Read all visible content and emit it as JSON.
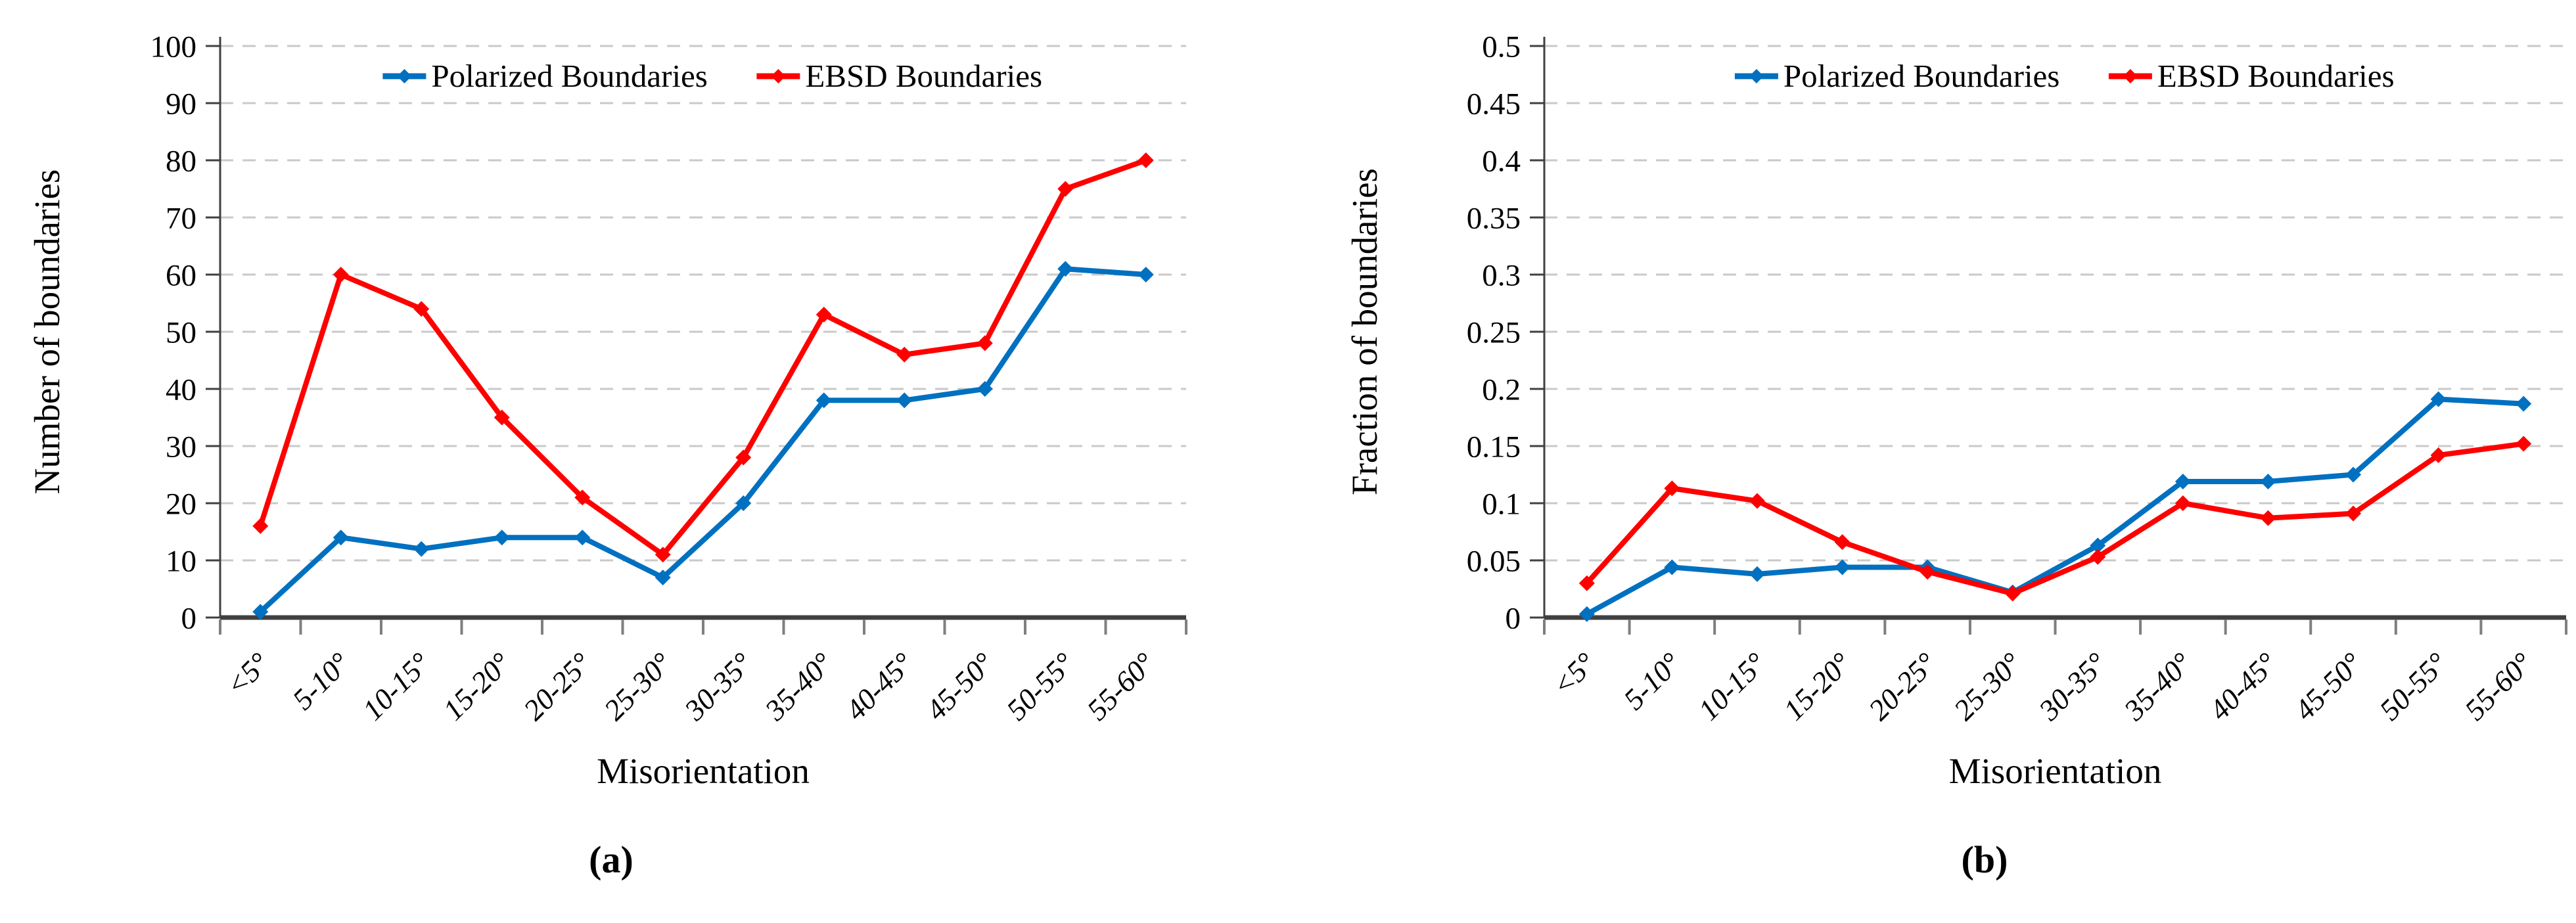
{
  "figure": {
    "caption_a": "(a)",
    "caption_b": "(b)"
  },
  "colors": {
    "polarized_blue": "#0070C0",
    "ebsd_red": "#FF0000",
    "gridline": "#C9C9C9",
    "axis": "#404040",
    "tick": "#7F7F7F",
    "text": "#000000"
  },
  "chart_data": [
    {
      "id": "a",
      "type": "line",
      "caption": "(a)",
      "title": "",
      "xlabel": "Misorientation",
      "ylabel": "Number of boundaries",
      "ylim": [
        0,
        100
      ],
      "ytick_step": 10,
      "yticklabels": [
        "0",
        "10",
        "20",
        "30",
        "40",
        "50",
        "60",
        "70",
        "80",
        "90",
        "100"
      ],
      "grid": true,
      "legend_position": "top",
      "categories": [
        "<5°",
        "5-10°",
        "10-15°",
        "15-20°",
        "20-25°",
        "25-30°",
        "30-35°",
        "35-40°",
        "40-45°",
        "45-50°",
        "50-55°",
        "55-60°"
      ],
      "series": [
        {
          "name": "Polarized Boundaries",
          "color": "#0070C0",
          "marker": "diamond",
          "values": [
            1,
            14,
            12,
            14,
            14,
            7,
            20,
            38,
            38,
            40,
            61,
            60
          ]
        },
        {
          "name": "EBSD Boundaries",
          "color": "#FF0000",
          "marker": "diamond",
          "values": [
            16,
            60,
            54,
            35,
            21,
            11,
            28,
            53,
            46,
            48,
            75,
            80
          ]
        }
      ]
    },
    {
      "id": "b",
      "type": "line",
      "caption": "(b)",
      "title": "",
      "xlabel": "Misorientation",
      "ylabel": "Fraction of boundaries",
      "ylim": [
        0,
        0.5
      ],
      "ytick_step": 0.05,
      "yticklabels": [
        "0",
        "0.05",
        "0.1",
        "0.15",
        "0.2",
        "0.25",
        "0.3",
        "0.35",
        "0.4",
        "0.45",
        "0.5"
      ],
      "grid": true,
      "legend_position": "top",
      "categories": [
        "<5°",
        "5-10°",
        "10-15°",
        "15-20°",
        "20-25°",
        "25-30°",
        "30-35°",
        "35-40°",
        "40-45°",
        "45-50°",
        "50-55°",
        "55-60°"
      ],
      "series": [
        {
          "name": "Polarized Boundaries",
          "color": "#0070C0",
          "marker": "diamond",
          "values": [
            0.003,
            0.044,
            0.038,
            0.044,
            0.044,
            0.022,
            0.063,
            0.119,
            0.119,
            0.125,
            0.191,
            0.187
          ]
        },
        {
          "name": "EBSD Boundaries",
          "color": "#FF0000",
          "marker": "diamond",
          "values": [
            0.03,
            0.113,
            0.102,
            0.066,
            0.04,
            0.021,
            0.053,
            0.1,
            0.087,
            0.091,
            0.142,
            0.152
          ]
        }
      ]
    }
  ]
}
